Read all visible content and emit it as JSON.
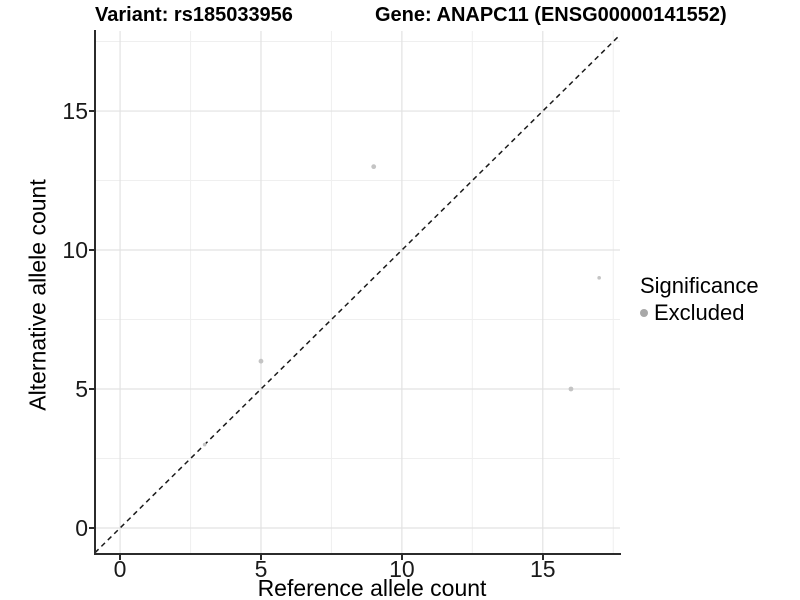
{
  "header": {
    "variant_title": "Variant: rs185033956",
    "gene_title": "Gene: ANAPC11 (ENSG00000141552)"
  },
  "legend": {
    "title": "Significance",
    "items": [
      {
        "label": "Excluded",
        "color": "#a8a8a8"
      }
    ]
  },
  "chart_data": {
    "type": "scatter",
    "title": "",
    "xlabel": "Reference allele count",
    "ylabel": "Alternative allele count",
    "x_axis": {
      "min": -0.89,
      "max": 17.74,
      "ticks": [
        0,
        5,
        10,
        15
      ],
      "minor_ticks": [
        2.5,
        7.5,
        12.5,
        17.5
      ]
    },
    "y_axis": {
      "min": -0.9,
      "max": 17.88,
      "ticks": [
        0,
        5,
        10,
        15
      ],
      "minor_ticks": [
        2.5,
        7.5,
        12.5,
        17.5
      ]
    },
    "series": [
      {
        "name": "Excluded",
        "color": "#c4c4c4",
        "points": [
          {
            "x": 3,
            "y": 3,
            "r": 1.8
          },
          {
            "x": 5,
            "y": 6,
            "r": 2.4
          },
          {
            "x": 9,
            "y": 13,
            "r": 2.4
          },
          {
            "x": 16,
            "y": 5,
            "r": 2.4
          },
          {
            "x": 17,
            "y": 9,
            "r": 1.8
          }
        ]
      }
    ],
    "reference_line": {
      "type": "identity",
      "style": "dashed",
      "color": "#1a1a1a"
    },
    "grid": true,
    "grid_major_color": "#e2e2e2",
    "grid_minor_color": "#efefef",
    "legend_position": "right"
  }
}
